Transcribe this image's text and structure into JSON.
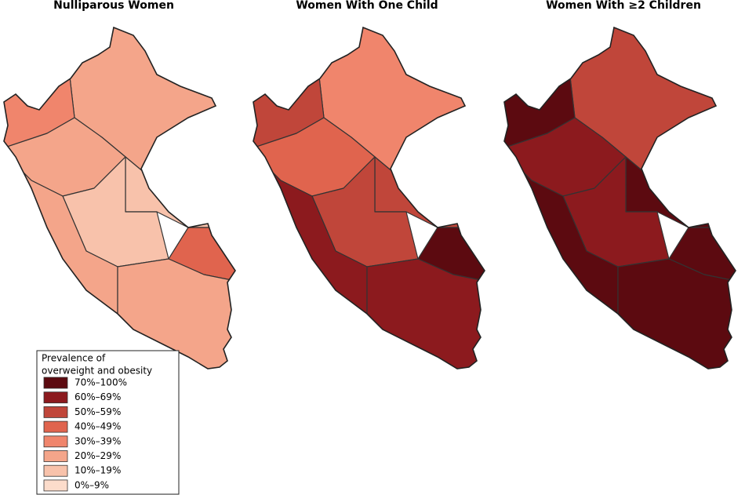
{
  "panels": [
    {
      "title": "Nulliparous Women"
    },
    {
      "title": "Women With One Child"
    },
    {
      "title": "Women With ≥2 Children"
    }
  ],
  "legend": {
    "title_lines": [
      "Prevalence of",
      "overweight and obesity"
    ],
    "items": [
      {
        "label": "70%–100%",
        "color": "#5c0a10"
      },
      {
        "label": "60%–69%",
        "color": "#8c1a1e"
      },
      {
        "label": "50%–59%",
        "color": "#c0463a"
      },
      {
        "label": "40%–49%",
        "color": "#e0644e"
      },
      {
        "label": "30%–39%",
        "color": "#f0856c"
      },
      {
        "label": "20%–29%",
        "color": "#f4a58a"
      },
      {
        "label": "10%–19%",
        "color": "#f8c2ab"
      },
      {
        "label": "0%–9%",
        "color": "#fcdccb"
      }
    ]
  }
}
